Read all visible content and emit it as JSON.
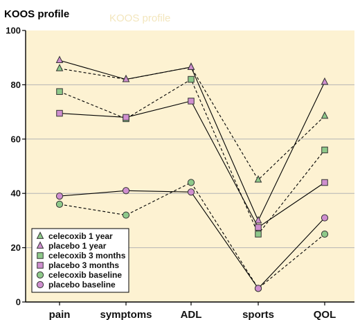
{
  "chart_data": {
    "type": "line",
    "title": "KOOS profile",
    "categories": [
      "pain",
      "symptoms",
      "ADL",
      "sports",
      "QOL"
    ],
    "ylim": [
      0,
      100
    ],
    "yticks": [
      0,
      20,
      40,
      60,
      80,
      100
    ],
    "grid": true,
    "legend_position": "bottom-left",
    "colors": {
      "background": "#fdf2d2",
      "grid": "#b4b4b4",
      "axis": "#000000",
      "line": "#000000"
    },
    "series": [
      {
        "name": "celecoxib 1 year",
        "marker": "triangle",
        "fill": "#8ec98a",
        "dash": "dashed",
        "values": [
          86,
          82,
          86.5,
          45,
          68.5
        ]
      },
      {
        "name": "placebo 1 year",
        "marker": "triangle",
        "fill": "#cf8fcf",
        "dash": "solid",
        "values": [
          89,
          82,
          86.5,
          30,
          81
        ]
      },
      {
        "name": "celecoxib 3 months",
        "marker": "square",
        "fill": "#8ec98a",
        "dash": "dashed",
        "values": [
          77.5,
          67.5,
          82,
          25,
          56
        ]
      },
      {
        "name": "placebo 3 months",
        "marker": "square",
        "fill": "#cf8fcf",
        "dash": "solid",
        "values": [
          69.5,
          68,
          74,
          27.5,
          44
        ]
      },
      {
        "name": "celecoxib baseline",
        "marker": "circle",
        "fill": "#8ec98a",
        "dash": "dashed",
        "values": [
          36,
          32,
          44,
          5,
          25
        ]
      },
      {
        "name": "placebo baseline",
        "marker": "circle",
        "fill": "#cf8fcf",
        "dash": "solid",
        "values": [
          39,
          41,
          40.5,
          5,
          31
        ]
      }
    ]
  }
}
